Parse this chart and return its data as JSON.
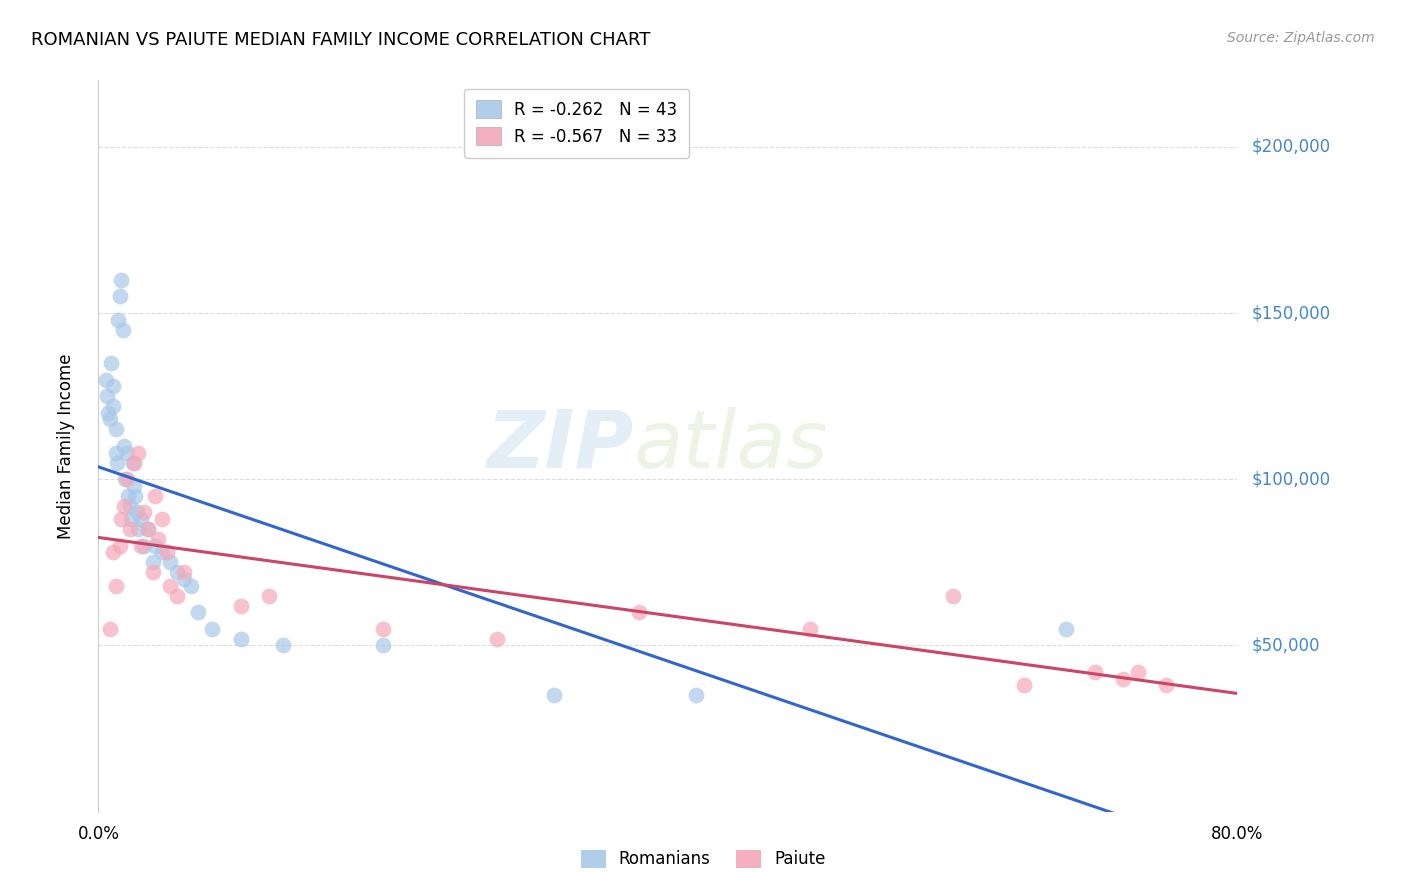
{
  "title": "ROMANIAN VS PAIUTE MEDIAN FAMILY INCOME CORRELATION CHART",
  "source": "Source: ZipAtlas.com",
  "ylabel": "Median Family Income",
  "watermark_zip": "ZIP",
  "watermark_atlas": "atlas",
  "legend_entries": [
    {
      "R": "-0.262",
      "N": "43",
      "color": "#a8c8e8"
    },
    {
      "R": "-0.567",
      "N": "33",
      "color": "#f4a8b8"
    }
  ],
  "yticks": [
    0,
    50000,
    100000,
    150000,
    200000
  ],
  "ytick_labels": [
    "",
    "$50,000",
    "$100,000",
    "$150,000",
    "$200,000"
  ],
  "xlim": [
    0.0,
    0.8
  ],
  "ylim": [
    0,
    220000
  ],
  "blue_scatter_color": "#a8c8e8",
  "pink_scatter_color": "#f4a8b8",
  "blue_line_color": "#3366cc",
  "pink_line_color": "#cc4466",
  "right_axis_color": "#4488cc",
  "grid_color": "#dddddd",
  "scatter_alpha": 0.7,
  "scatter_size": 130,
  "romanians_x": [
    0.005,
    0.006,
    0.007,
    0.008,
    0.009,
    0.01,
    0.01,
    0.012,
    0.012,
    0.013,
    0.014,
    0.015,
    0.016,
    0.017,
    0.018,
    0.019,
    0.02,
    0.021,
    0.022,
    0.023,
    0.024,
    0.025,
    0.026,
    0.027,
    0.028,
    0.03,
    0.032,
    0.035,
    0.038,
    0.04,
    0.045,
    0.05,
    0.055,
    0.06,
    0.065,
    0.07,
    0.08,
    0.1,
    0.13,
    0.2,
    0.32,
    0.42,
    0.68
  ],
  "romanians_y": [
    130000,
    125000,
    120000,
    118000,
    135000,
    128000,
    122000,
    115000,
    108000,
    105000,
    148000,
    155000,
    160000,
    145000,
    110000,
    100000,
    108000,
    95000,
    92000,
    88000,
    105000,
    98000,
    95000,
    90000,
    85000,
    88000,
    80000,
    85000,
    75000,
    80000,
    78000,
    75000,
    72000,
    70000,
    68000,
    60000,
    55000,
    52000,
    50000,
    50000,
    35000,
    35000,
    55000
  ],
  "paiute_x": [
    0.008,
    0.01,
    0.012,
    0.015,
    0.016,
    0.018,
    0.02,
    0.022,
    0.025,
    0.028,
    0.03,
    0.032,
    0.035,
    0.038,
    0.04,
    0.042,
    0.045,
    0.048,
    0.05,
    0.055,
    0.06,
    0.1,
    0.12,
    0.2,
    0.28,
    0.38,
    0.5,
    0.6,
    0.65,
    0.7,
    0.72,
    0.73,
    0.75
  ],
  "paiute_y": [
    55000,
    78000,
    68000,
    80000,
    88000,
    92000,
    100000,
    85000,
    105000,
    108000,
    80000,
    90000,
    85000,
    72000,
    95000,
    82000,
    88000,
    78000,
    68000,
    65000,
    72000,
    62000,
    65000,
    55000,
    52000,
    60000,
    55000,
    65000,
    38000,
    42000,
    40000,
    42000,
    38000
  ]
}
